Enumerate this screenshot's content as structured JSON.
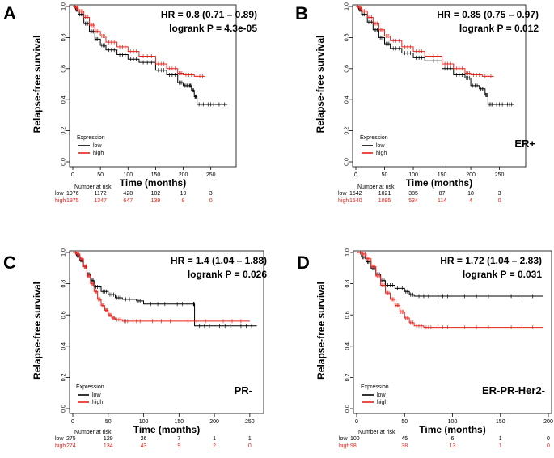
{
  "colors": {
    "low": "#000000",
    "high": "#e8201a"
  },
  "chart_data": [
    {
      "type": "line",
      "panel": "A",
      "subset": "",
      "hr_text": "HR = 0.8 (0.71 – 0.89)",
      "p_text": "logrank P = 4.3e-05",
      "xlabel": "Time (months)",
      "ylabel": "Relapse-free survival",
      "xlim": [
        0,
        290
      ],
      "ylim": [
        0,
        1
      ],
      "xticks": [
        0,
        50,
        100,
        150,
        200,
        250
      ],
      "yticks": [
        0,
        0.2,
        0.4,
        0.6,
        0.8,
        1
      ],
      "ytick_labels": [
        "0.0",
        "0.2",
        "0.4",
        "0.6",
        "0.8",
        "1.0"
      ],
      "legend_title": "Expression",
      "series": [
        {
          "name": "low",
          "color": "#000000",
          "x": [
            0,
            5,
            10,
            20,
            30,
            40,
            50,
            60,
            80,
            100,
            120,
            150,
            170,
            190,
            200,
            210,
            215,
            220,
            225,
            240,
            260,
            280
          ],
          "y": [
            1.0,
            0.98,
            0.95,
            0.89,
            0.84,
            0.79,
            0.75,
            0.72,
            0.69,
            0.66,
            0.64,
            0.59,
            0.56,
            0.51,
            0.49,
            0.49,
            0.46,
            0.42,
            0.37,
            0.37,
            0.37,
            0.37
          ]
        },
        {
          "name": "high",
          "color": "#e8201a",
          "x": [
            0,
            5,
            10,
            20,
            30,
            40,
            50,
            60,
            80,
            100,
            120,
            150,
            170,
            190,
            200,
            220,
            240
          ],
          "y": [
            1.0,
            0.99,
            0.97,
            0.93,
            0.88,
            0.84,
            0.81,
            0.77,
            0.74,
            0.71,
            0.68,
            0.63,
            0.6,
            0.57,
            0.56,
            0.55,
            0.55
          ]
        }
      ],
      "risk_title": "Number at risk",
      "risk_x": [
        0,
        50,
        100,
        150,
        200,
        250
      ],
      "risk": [
        {
          "label": "low",
          "values": [
            "1976",
            "1172",
            "428",
            "102",
            "19",
            "3"
          ]
        },
        {
          "label": "high",
          "values": [
            "1975",
            "1347",
            "647",
            "139",
            "8",
            "0"
          ]
        }
      ]
    },
    {
      "type": "line",
      "panel": "B",
      "subset": "ER+",
      "hr_text": "HR = 0.85 (0.75 – 0.97)",
      "p_text": "logrank P = 0.012",
      "xlabel": "Time (months)",
      "ylabel": "Relapse-free survival",
      "xlim": [
        0,
        290
      ],
      "ylim": [
        0,
        1
      ],
      "xticks": [
        0,
        50,
        100,
        150,
        200,
        250
      ],
      "yticks": [
        0,
        0.2,
        0.4,
        0.6,
        0.8,
        1
      ],
      "ytick_labels": [
        "0.0",
        "0.2",
        "0.4",
        "0.6",
        "0.8",
        "1.0"
      ],
      "legend_title": "Expression",
      "series": [
        {
          "name": "low",
          "color": "#000000",
          "x": [
            0,
            5,
            10,
            20,
            30,
            40,
            50,
            60,
            80,
            100,
            120,
            150,
            170,
            190,
            200,
            215,
            225,
            230,
            240,
            260,
            275
          ],
          "y": [
            1.0,
            0.98,
            0.95,
            0.9,
            0.85,
            0.8,
            0.76,
            0.73,
            0.7,
            0.67,
            0.65,
            0.6,
            0.56,
            0.54,
            0.49,
            0.47,
            0.43,
            0.37,
            0.37,
            0.37,
            0.37
          ]
        },
        {
          "name": "high",
          "color": "#e8201a",
          "x": [
            0,
            5,
            10,
            20,
            30,
            40,
            50,
            60,
            80,
            100,
            120,
            150,
            170,
            190,
            200,
            220,
            240
          ],
          "y": [
            1.0,
            0.99,
            0.97,
            0.93,
            0.89,
            0.85,
            0.81,
            0.78,
            0.74,
            0.71,
            0.68,
            0.63,
            0.6,
            0.57,
            0.56,
            0.55,
            0.55
          ]
        }
      ],
      "risk_title": "Number at risk",
      "risk_x": [
        0,
        50,
        100,
        150,
        200,
        250
      ],
      "risk": [
        {
          "label": "low",
          "values": [
            "1542",
            "1021",
            "385",
            "87",
            "18",
            "3"
          ]
        },
        {
          "label": "high",
          "values": [
            "1540",
            "1095",
            "534",
            "114",
            "4",
            "0"
          ]
        }
      ]
    },
    {
      "type": "line",
      "panel": "C",
      "subset": "PR-",
      "hr_text": "HR = 1.4 (1.04 – 1.88)",
      "p_text": "logrank P = 0.026",
      "xlabel": "Time (months)",
      "ylabel": "Relapse-free survival",
      "xlim": [
        0,
        265
      ],
      "ylim": [
        0,
        1
      ],
      "xticks": [
        0,
        50,
        100,
        150,
        200,
        250
      ],
      "yticks": [
        0,
        0.2,
        0.4,
        0.6,
        0.8,
        1
      ],
      "ytick_labels": [
        "0.0",
        "0.2",
        "0.4",
        "0.6",
        "0.8",
        "1.0"
      ],
      "legend_title": "Expression",
      "series": [
        {
          "name": "low",
          "color": "#000000",
          "x": [
            0,
            5,
            10,
            15,
            20,
            25,
            30,
            40,
            50,
            60,
            70,
            90,
            100,
            140,
            170,
            172,
            200,
            230,
            260
          ],
          "y": [
            1.0,
            0.98,
            0.95,
            0.91,
            0.86,
            0.82,
            0.78,
            0.75,
            0.73,
            0.71,
            0.7,
            0.69,
            0.67,
            0.67,
            0.67,
            0.53,
            0.53,
            0.53,
            0.53
          ]
        },
        {
          "name": "high",
          "color": "#e8201a",
          "x": [
            0,
            5,
            10,
            15,
            20,
            25,
            30,
            35,
            40,
            45,
            50,
            55,
            60,
            70,
            80,
            100,
            150,
            200,
            250
          ],
          "y": [
            1.0,
            0.99,
            0.96,
            0.91,
            0.85,
            0.8,
            0.75,
            0.7,
            0.66,
            0.63,
            0.6,
            0.58,
            0.57,
            0.56,
            0.56,
            0.56,
            0.56,
            0.56,
            0.56
          ]
        }
      ],
      "risk_title": "Number at risk",
      "risk_x": [
        0,
        50,
        100,
        150,
        200,
        250
      ],
      "risk": [
        {
          "label": "low",
          "values": [
            "275",
            "129",
            "26",
            "7",
            "1",
            "1"
          ]
        },
        {
          "label": "high",
          "values": [
            "274",
            "134",
            "43",
            "9",
            "2",
            "0"
          ]
        }
      ]
    },
    {
      "type": "line",
      "panel": "D",
      "subset": "ER-PR-Her2-",
      "hr_text": "HR = 1.72 (1.04 – 2.83)",
      "p_text": "logrank P = 0.031",
      "xlabel": "Time (months)",
      "ylabel": "Relapse-free survival",
      "xlim": [
        0,
        200
      ],
      "ylim": [
        0,
        1
      ],
      "xticks": [
        0,
        50,
        100,
        150,
        200
      ],
      "yticks": [
        0,
        0.2,
        0.4,
        0.6,
        0.8,
        1
      ],
      "ytick_labels": [
        "0.0",
        "0.2",
        "0.4",
        "0.6",
        "0.8",
        "1.0"
      ],
      "legend_title": "Expression",
      "series": [
        {
          "name": "low",
          "color": "#000000",
          "x": [
            0,
            5,
            10,
            15,
            20,
            25,
            30,
            40,
            50,
            55,
            60,
            80,
            100,
            150,
            195
          ],
          "y": [
            1.0,
            0.97,
            0.94,
            0.9,
            0.86,
            0.82,
            0.79,
            0.77,
            0.75,
            0.73,
            0.72,
            0.72,
            0.72,
            0.72,
            0.72
          ]
        },
        {
          "name": "high",
          "color": "#e8201a",
          "x": [
            0,
            5,
            10,
            15,
            20,
            25,
            30,
            35,
            40,
            45,
            50,
            55,
            60,
            70,
            80,
            100,
            150,
            195
          ],
          "y": [
            1.0,
            0.99,
            0.96,
            0.91,
            0.85,
            0.79,
            0.74,
            0.7,
            0.66,
            0.62,
            0.58,
            0.55,
            0.53,
            0.52,
            0.52,
            0.52,
            0.52,
            0.52
          ]
        }
      ],
      "risk_title": "Number at risk",
      "risk_x": [
        0,
        50,
        100,
        150,
        200
      ],
      "risk": [
        {
          "label": "low",
          "values": [
            "100",
            "45",
            "6",
            "1",
            "0"
          ]
        },
        {
          "label": "high",
          "values": [
            "98",
            "38",
            "13",
            "1",
            "0"
          ]
        }
      ]
    }
  ]
}
